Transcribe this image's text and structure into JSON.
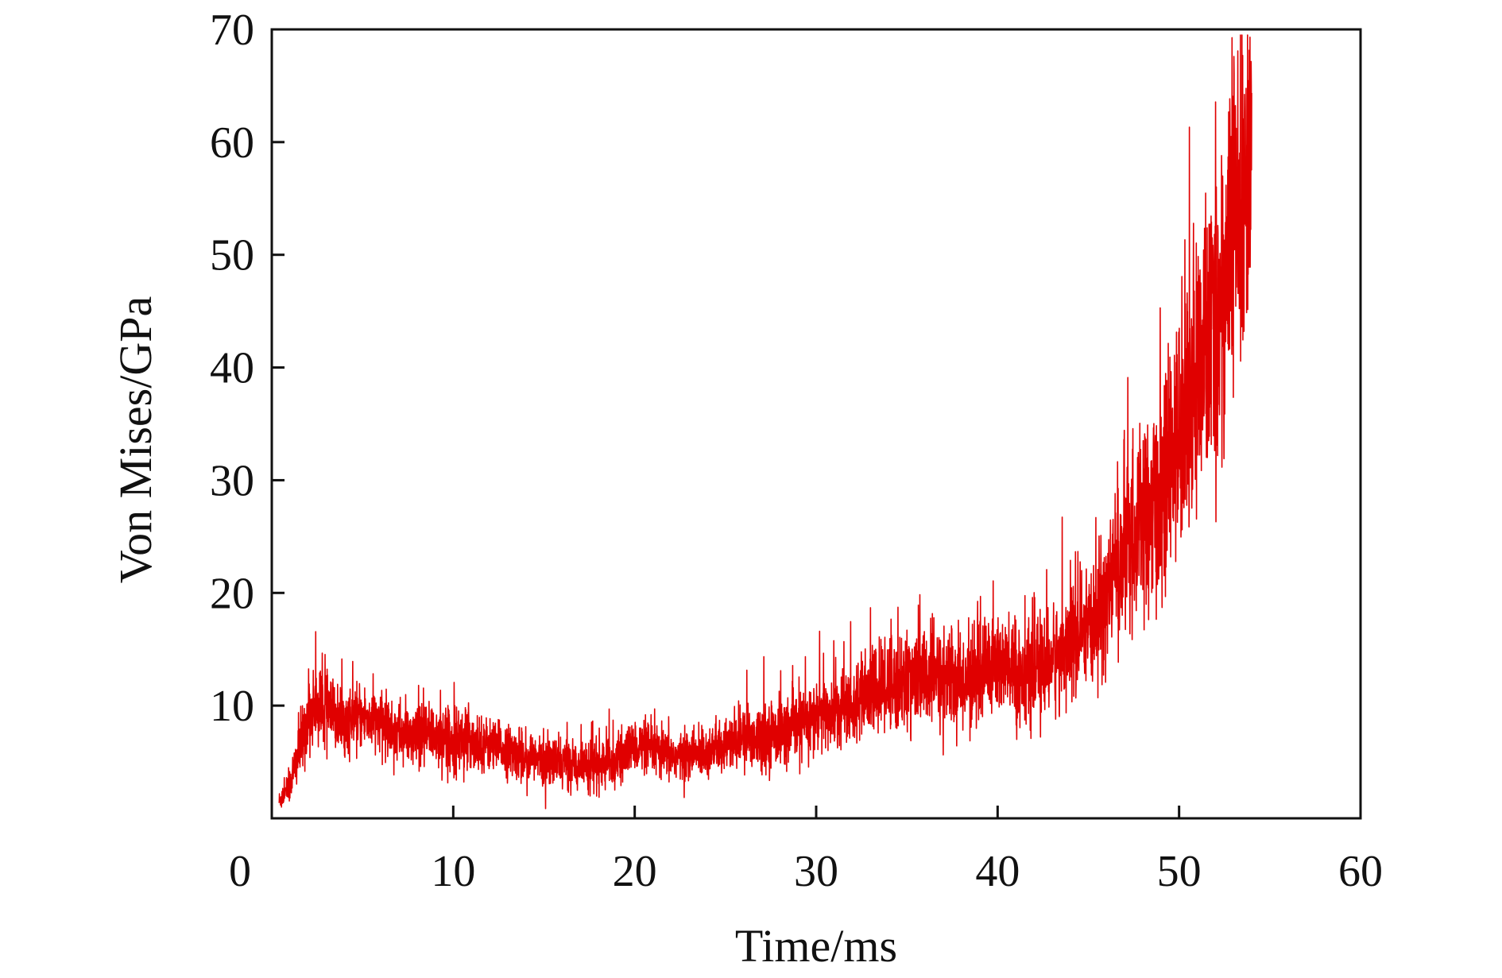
{
  "chart_data": {
    "type": "line",
    "title": "",
    "xlabel": "Time/ms",
    "ylabel": "Von Mises/GPa",
    "xlim": [
      0,
      60
    ],
    "ylim": [
      0,
      70
    ],
    "xticks": [
      0,
      10,
      20,
      30,
      40,
      50,
      60
    ],
    "yticks": [
      10,
      20,
      30,
      40,
      50,
      60,
      70
    ],
    "y_tick_labels_shown": [
      "10",
      "20",
      "30",
      "40",
      "50",
      "60",
      "70"
    ],
    "x_tick_labels_shown": [
      "0",
      "10",
      "20",
      "30",
      "40",
      "50",
      "60"
    ],
    "grid": false,
    "legend": "none",
    "series": [
      {
        "color": "#e00000",
        "x": [
          0.4,
          1.0,
          1.5,
          2.0,
          2.5,
          3.0,
          4.0,
          5.0,
          6.0,
          7.0,
          8.0,
          9.0,
          10.0,
          11.0,
          12.0,
          13.0,
          14.0,
          15.0,
          16.0,
          17.0,
          18.0,
          19.0,
          20.0,
          21.0,
          22.0,
          23.0,
          24.0,
          25.0,
          26.0,
          27.0,
          28.0,
          29.0,
          30.0,
          31.0,
          32.0,
          33.0,
          34.0,
          35.0,
          36.0,
          37.0,
          38.0,
          39.0,
          40.0,
          41.0,
          42.0,
          43.0,
          44.0,
          45.0,
          46.0,
          47.0,
          48.0,
          49.0,
          50.0,
          51.0,
          52.0,
          53.0,
          54.0
        ],
        "y": [
          1.5,
          3.0,
          6.0,
          9.0,
          10.0,
          9.5,
          8.5,
          9.0,
          8.5,
          7.5,
          7.0,
          7.5,
          7.0,
          7.0,
          6.5,
          6.0,
          5.5,
          5.0,
          5.0,
          4.8,
          4.8,
          5.0,
          6.5,
          6.0,
          5.5,
          5.5,
          6.0,
          6.5,
          7.0,
          7.5,
          7.5,
          8.0,
          9.0,
          9.5,
          10.0,
          11.0,
          12.0,
          12.0,
          12.5,
          12.5,
          12.0,
          13.0,
          14.0,
          12.5,
          13.0,
          14.0,
          15.5,
          16.0,
          20.0,
          24.0,
          26.0,
          28.0,
          34.0,
          40.0,
          43.0,
          52.0,
          57.0
        ],
        "noise_amplitude": [
          0.8,
          1.5,
          2.5,
          3.0,
          3.0,
          3.0,
          2.5,
          2.5,
          2.5,
          2.5,
          2.5,
          2.5,
          2.5,
          2.5,
          2.0,
          2.0,
          2.0,
          2.0,
          2.0,
          2.0,
          2.0,
          2.0,
          2.0,
          2.0,
          2.0,
          2.0,
          2.0,
          2.0,
          2.5,
          2.5,
          2.5,
          2.8,
          3.0,
          3.0,
          3.0,
          3.5,
          4.0,
          4.0,
          4.0,
          4.0,
          3.5,
          4.5,
          4.5,
          4.0,
          4.0,
          4.0,
          4.5,
          4.5,
          5.5,
          7.0,
          7.5,
          8.0,
          9.5,
          11.0,
          12.0,
          14.0,
          12.0
        ]
      }
    ]
  }
}
